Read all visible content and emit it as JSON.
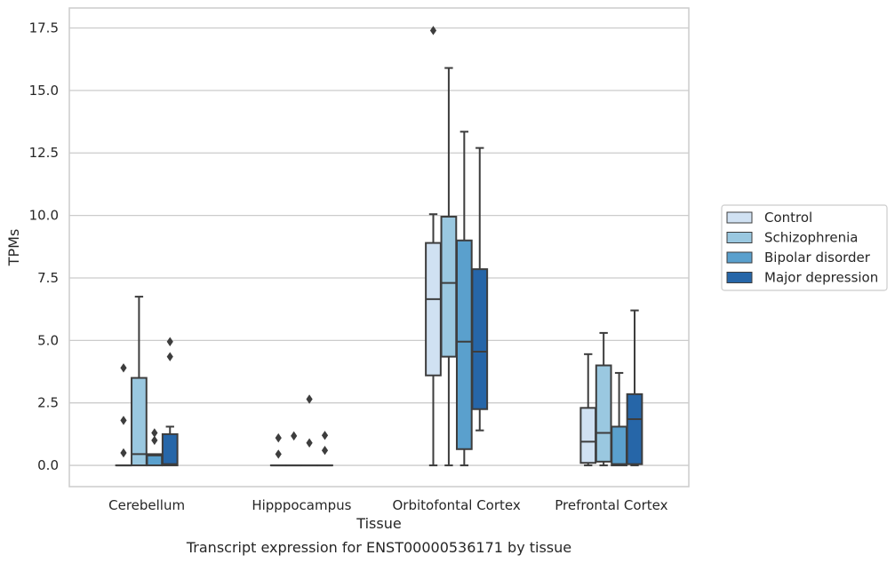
{
  "chart_data": {
    "type": "box",
    "title": "Transcript expression for ENST00000536171 by tissue",
    "xlabel": "Tissue",
    "ylabel": "TPMs",
    "ylim": [
      -0.85,
      18.3
    ],
    "yticks": [
      0.0,
      2.5,
      5.0,
      7.5,
      10.0,
      12.5,
      15.0,
      17.5
    ],
    "ytick_labels": [
      "0.0",
      "2.5",
      "5.0",
      "7.5",
      "10.0",
      "12.5",
      "15.0",
      "17.5"
    ],
    "grid": "horizontal",
    "legend_position": "right",
    "categories": [
      "Cerebellum",
      "Hipppocampus",
      "Orbitofontal Cortex",
      "Prefrontal Cortex"
    ],
    "series": [
      {
        "name": "Control",
        "color": "#d0e1f2",
        "boxes": [
          {
            "whislo": 0.0,
            "q1": 0.0,
            "med": 0.0,
            "q3": 0.0,
            "whishi": 0.0,
            "fliers": [
              0.5,
              1.8,
              3.9
            ]
          },
          {
            "whislo": 0.0,
            "q1": 0.0,
            "med": 0.0,
            "q3": 0.0,
            "whishi": 0.0,
            "fliers": [
              0.45,
              1.1
            ]
          },
          {
            "whislo": 0.0,
            "q1": 3.6,
            "med": 6.65,
            "q3": 8.9,
            "whishi": 10.05,
            "fliers": [
              17.4
            ]
          },
          {
            "whislo": 0.0,
            "q1": 0.1,
            "med": 0.95,
            "q3": 2.3,
            "whishi": 4.45,
            "fliers": []
          }
        ]
      },
      {
        "name": "Schizophrenia",
        "color": "#9ac8e0",
        "boxes": [
          {
            "whislo": 0.0,
            "q1": 0.0,
            "med": 0.45,
            "q3": 3.5,
            "whishi": 6.75,
            "fliers": []
          },
          {
            "whislo": 0.0,
            "q1": 0.0,
            "med": 0.0,
            "q3": 0.0,
            "whishi": 0.0,
            "fliers": [
              1.18
            ]
          },
          {
            "whislo": 0.0,
            "q1": 4.35,
            "med": 7.3,
            "q3": 9.95,
            "whishi": 15.9,
            "fliers": []
          },
          {
            "whislo": 0.0,
            "q1": 0.15,
            "med": 1.3,
            "q3": 4.0,
            "whishi": 5.3,
            "fliers": []
          }
        ]
      },
      {
        "name": "Bipolar disorder",
        "color": "#5aa0cd",
        "boxes": [
          {
            "whislo": 0.0,
            "q1": 0.0,
            "med": 0.4,
            "q3": 0.45,
            "whishi": 0.45,
            "fliers": [
              1.0,
              1.3
            ]
          },
          {
            "whislo": 0.0,
            "q1": 0.0,
            "med": 0.0,
            "q3": 0.0,
            "whishi": 0.0,
            "fliers": [
              0.9,
              2.65
            ]
          },
          {
            "whislo": 0.0,
            "q1": 0.65,
            "med": 4.95,
            "q3": 9.0,
            "whishi": 13.35,
            "fliers": []
          },
          {
            "whislo": 0.0,
            "q1": 0.0,
            "med": 0.05,
            "q3": 1.55,
            "whishi": 3.7,
            "fliers": []
          }
        ]
      },
      {
        "name": "Major depression",
        "color": "#2666a8",
        "boxes": [
          {
            "whislo": 0.0,
            "q1": 0.0,
            "med": 0.05,
            "q3": 1.25,
            "whishi": 1.55,
            "fliers": [
              4.35,
              4.95
            ]
          },
          {
            "whislo": 0.0,
            "q1": 0.0,
            "med": 0.0,
            "q3": 0.0,
            "whishi": 0.0,
            "fliers": [
              0.6,
              1.2
            ]
          },
          {
            "whislo": 1.4,
            "q1": 2.25,
            "med": 4.55,
            "q3": 7.85,
            "whishi": 12.7,
            "fliers": []
          },
          {
            "whislo": 0.0,
            "q1": 0.05,
            "med": 1.85,
            "q3": 2.85,
            "whishi": 6.2,
            "fliers": []
          }
        ]
      }
    ]
  }
}
